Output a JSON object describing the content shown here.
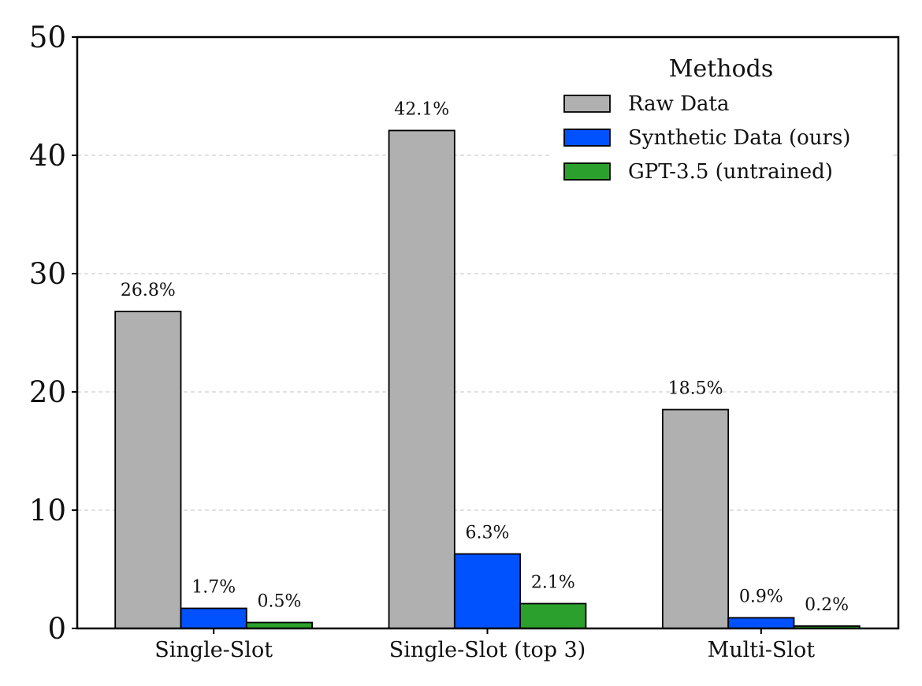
{
  "chart_data": {
    "type": "bar",
    "title": "",
    "xlabel": "",
    "ylabel": "",
    "ylim": [
      0,
      50
    ],
    "yticks": [
      0,
      10,
      20,
      30,
      40,
      50
    ],
    "grid": "y-dashed",
    "categories": [
      "Single-Slot",
      "Single-Slot (top 3)",
      "Multi-Slot"
    ],
    "legend": {
      "title": "Methods",
      "placement": "top-right"
    },
    "series": [
      {
        "name": "Raw Data",
        "color": "#b0b0b0",
        "values": [
          26.8,
          42.1,
          18.5
        ],
        "labels": [
          "26.8%",
          "42.1%",
          "18.5%"
        ]
      },
      {
        "name": "Synthetic Data (ours)",
        "color": "#0051ff",
        "values": [
          1.7,
          6.3,
          0.9
        ],
        "labels": [
          "1.7%",
          "6.3%",
          "0.9%"
        ]
      },
      {
        "name": "GPT-3.5 (untrained)",
        "color": "#2ca02c",
        "values": [
          0.5,
          2.1,
          0.2
        ],
        "labels": [
          "0.5%",
          "2.1%",
          "0.2%"
        ]
      }
    ]
  }
}
